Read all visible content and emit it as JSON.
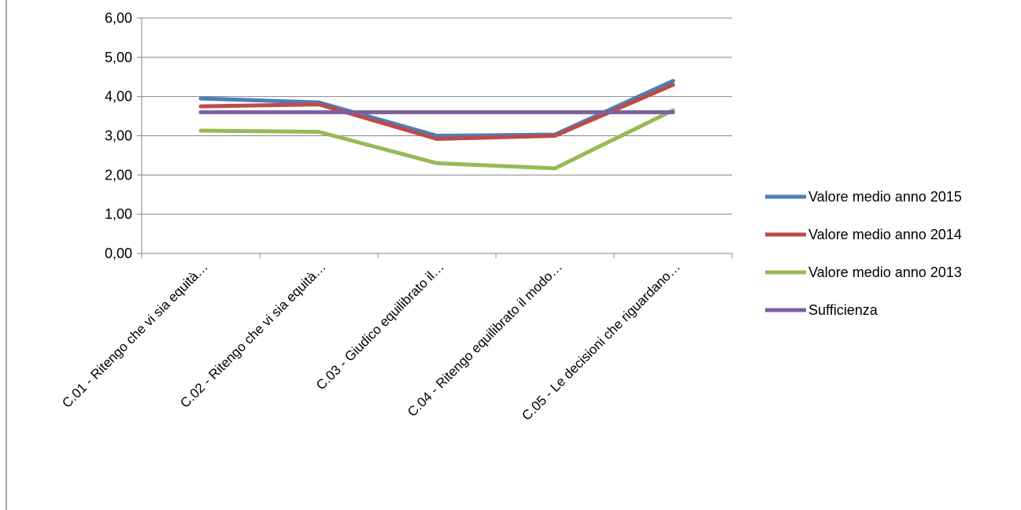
{
  "chart_data": {
    "type": "line",
    "title": "",
    "xlabel": "",
    "ylabel": "",
    "ylim": [
      0,
      6
    ],
    "yticks": [
      "0,00",
      "1,00",
      "2,00",
      "3,00",
      "4,00",
      "5,00",
      "6,00"
    ],
    "grid": "horizontal",
    "legend_position": "right",
    "categories": [
      "C.01 - Ritengo che vi sia equità…",
      "C.02 - Ritengo che vi sia equità…",
      "C.03 - Giudico equilibrato il…",
      "C.04 - Ritengo equilibrato il modo…",
      "C.05 - Le decisioni che riguardano…"
    ],
    "series": [
      {
        "name": "Valore medio anno 2015",
        "color": "#4a7ebb",
        "values": [
          3.95,
          3.85,
          3.0,
          3.03,
          4.4
        ]
      },
      {
        "name": "Valore medio anno 2014",
        "color": "#be4b48",
        "values": [
          3.75,
          3.8,
          2.92,
          3.0,
          4.3
        ]
      },
      {
        "name": "Valore medio anno 2013",
        "color": "#98b954",
        "values": [
          3.13,
          3.1,
          2.3,
          2.17,
          3.65
        ]
      },
      {
        "name": "Sufficienza",
        "color": "#7d60a0",
        "values": [
          3.6,
          3.6,
          3.6,
          3.6,
          3.6
        ]
      }
    ]
  }
}
